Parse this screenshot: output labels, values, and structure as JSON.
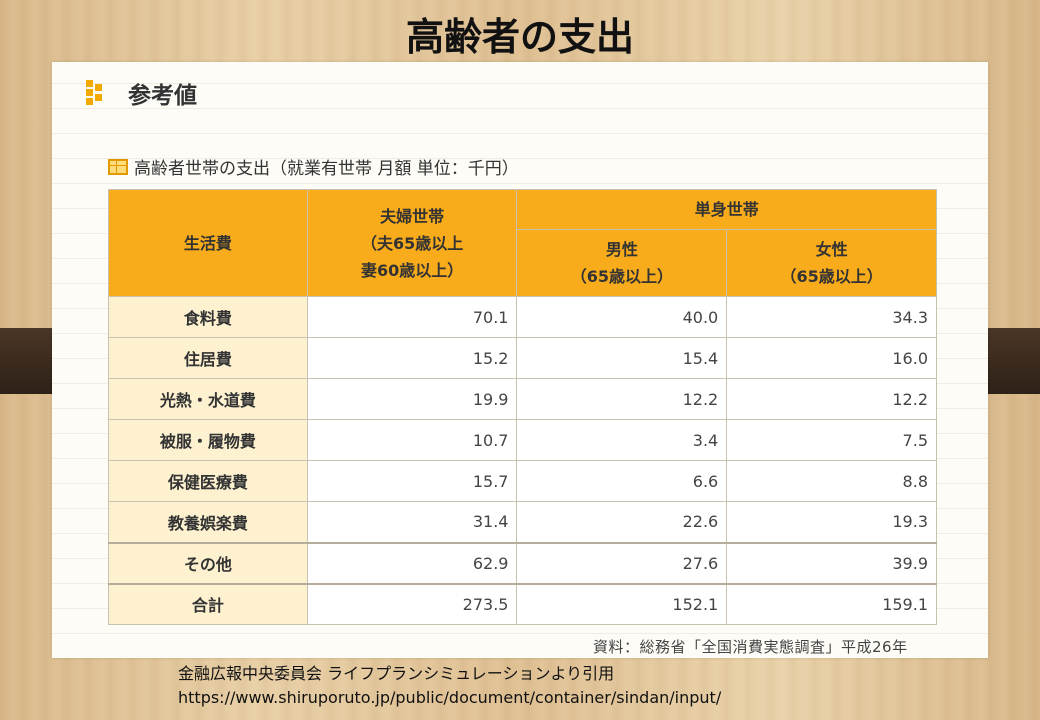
{
  "slide": {
    "title": "高齢者の支出"
  },
  "panel": {
    "heading": "参考値",
    "caption": "高齢者世帯の支出（就業有世帯 月額 単位：千円）",
    "source": "資料：総務省「全国消費実態調査」平成26年"
  },
  "table": {
    "header": {
      "item": "生活費",
      "couple": [
        "夫婦世帯",
        "（夫65歳以上",
        "妻60歳以上）"
      ],
      "single": "単身世帯",
      "male": [
        "男性",
        "（65歳以上）"
      ],
      "female": [
        "女性",
        "（65歳以上）"
      ]
    },
    "rows": [
      {
        "label": "食料費",
        "couple": "70.1",
        "male": "40.0",
        "female": "34.3"
      },
      {
        "label": "住居費",
        "couple": "15.2",
        "male": "15.4",
        "female": "16.0"
      },
      {
        "label": "光熱・水道費",
        "couple": "19.9",
        "male": "12.2",
        "female": "12.2"
      },
      {
        "label": "被服・履物費",
        "couple": "10.7",
        "male": "3.4",
        "female": "7.5"
      },
      {
        "label": "保健医療費",
        "couple": "15.7",
        "male": "6.6",
        "female": "8.8"
      },
      {
        "label": "教養娯楽費",
        "couple": "31.4",
        "male": "22.6",
        "female": "19.3"
      },
      {
        "label": "その他",
        "couple": "62.9",
        "male": "27.6",
        "female": "39.9"
      },
      {
        "label": "合計",
        "couple": "273.5",
        "male": "152.1",
        "female": "159.1"
      }
    ]
  },
  "footer": {
    "citation": "金融広報中央委員会  ライフプランシミュレーションより引用",
    "url": "https://www.shiruporuto.jp/public/document/container/sindan/input/"
  },
  "colors": {
    "header_bg": "#f8ab1b",
    "label_bg": "#fdf1d0",
    "accent": "#f2a900"
  }
}
